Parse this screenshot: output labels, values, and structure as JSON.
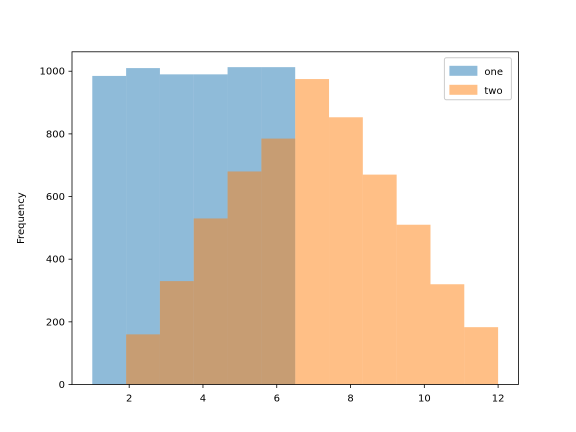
{
  "chart_data": {
    "type": "histogram",
    "ylabel": "Frequency",
    "xlabel": "",
    "title": "",
    "xlim": [
      0.45,
      12.55
    ],
    "ylim": [
      0,
      1062
    ],
    "xticks": [
      2,
      4,
      6,
      8,
      10,
      12
    ],
    "yticks": [
      0,
      200,
      400,
      600,
      800,
      1000
    ],
    "alpha": 0.5,
    "series": [
      {
        "name": "one",
        "color": "#1f77b4",
        "bins": [
          {
            "x0": 1.0,
            "x1": 1.917,
            "value": 985
          },
          {
            "x0": 1.917,
            "x1": 2.833,
            "value": 1010
          },
          {
            "x0": 2.833,
            "x1": 3.75,
            "value": 990
          },
          {
            "x0": 3.75,
            "x1": 4.667,
            "value": 990
          },
          {
            "x0": 4.667,
            "x1": 5.583,
            "value": 1013
          },
          {
            "x0": 5.583,
            "x1": 6.5,
            "value": 1013
          }
        ]
      },
      {
        "name": "two",
        "color": "#ff7f0e",
        "bins": [
          {
            "x0": 1.917,
            "x1": 2.833,
            "value": 160
          },
          {
            "x0": 2.833,
            "x1": 3.75,
            "value": 330
          },
          {
            "x0": 3.75,
            "x1": 4.667,
            "value": 530
          },
          {
            "x0": 4.667,
            "x1": 5.583,
            "value": 680
          },
          {
            "x0": 5.583,
            "x1": 6.5,
            "value": 785
          },
          {
            "x0": 6.5,
            "x1": 7.417,
            "value": 975
          },
          {
            "x0": 7.417,
            "x1": 8.333,
            "value": 853
          },
          {
            "x0": 8.333,
            "x1": 9.25,
            "value": 670
          },
          {
            "x0": 9.25,
            "x1": 10.167,
            "value": 510
          },
          {
            "x0": 10.167,
            "x1": 11.083,
            "value": 320
          },
          {
            "x0": 11.083,
            "x1": 12.0,
            "value": 183
          }
        ]
      }
    ],
    "legend": {
      "placement": "top-right"
    }
  }
}
